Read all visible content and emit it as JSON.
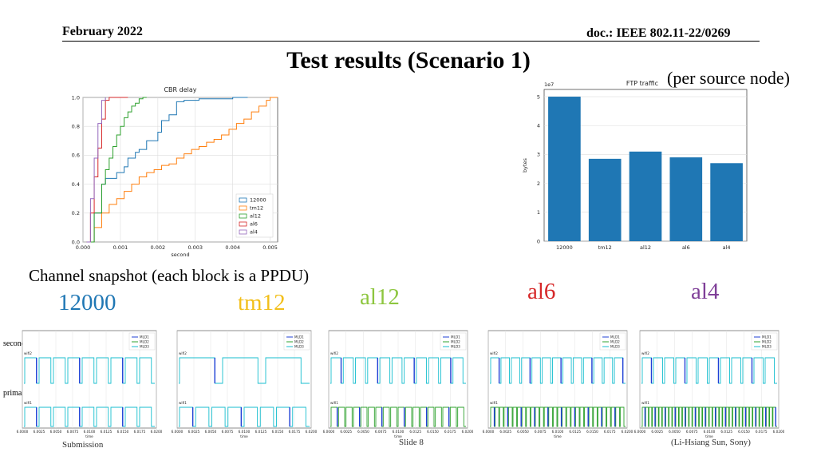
{
  "header": {
    "date": "February 2022",
    "doc": "doc.: IEEE 802.11-22/0269"
  },
  "title": "Test results (Scenario 1)",
  "subtitle": "(per source node)",
  "caption": "Channel snapshot (each block is a PPDU)",
  "variant_labels": [
    "12000",
    "tm12",
    "al12",
    "al6",
    "al4"
  ],
  "side_labels": {
    "secondary": "secondary",
    "primary": "primary"
  },
  "footer": {
    "left": "Submission",
    "slide": "Slide 8",
    "author": "(Li-Hsiang Sun, Sony)"
  },
  "colors": {
    "12000": "#1f77b4",
    "tm12": "#ff7f0e",
    "al12": "#2ca02c",
    "al6": "#d62728",
    "al4": "#9467bd",
    "bar": "#1f77b4",
    "mld1": "#1f3fd6",
    "mld2": "#2ca02c",
    "mld3": "#17becf"
  },
  "chart_data": [
    {
      "type": "line",
      "title": "CBR delay",
      "xlabel": "second",
      "ylabel": "",
      "xlim": [
        0,
        0.0052
      ],
      "ylim": [
        0,
        1.0
      ],
      "xticks": [
        "0.000",
        "0.001",
        "0.002",
        "0.003",
        "0.004",
        "0.005"
      ],
      "yticks": [
        "0.0",
        "0.2",
        "0.4",
        "0.6",
        "0.8",
        "1.0"
      ],
      "grid": true,
      "legend": "lower-right",
      "series": [
        {
          "name": "12000",
          "x": [
            0.0001,
            0.0003,
            0.0005,
            0.0006,
            0.0008,
            0.0009,
            0.0011,
            0.0012,
            0.0014,
            0.0015,
            0.0017,
            0.0018,
            0.002,
            0.0021,
            0.0023,
            0.0025,
            0.0027,
            0.0029,
            0.0031,
            0.004,
            0.0044
          ],
          "y": [
            0.0,
            0.2,
            0.4,
            0.44,
            0.44,
            0.48,
            0.52,
            0.58,
            0.62,
            0.64,
            0.7,
            0.7,
            0.76,
            0.84,
            0.88,
            0.97,
            0.98,
            0.98,
            0.99,
            1.0,
            1.0
          ]
        },
        {
          "name": "tm12",
          "x": [
            0.0001,
            0.0003,
            0.0005,
            0.0007,
            0.0009,
            0.0011,
            0.0013,
            0.0015,
            0.0017,
            0.0019,
            0.0021,
            0.0023,
            0.0025,
            0.0027,
            0.0029,
            0.0031,
            0.0033,
            0.0035,
            0.0037,
            0.0039,
            0.0041,
            0.0043,
            0.0045,
            0.0047,
            0.0049,
            0.005,
            0.0052
          ],
          "y": [
            0.0,
            0.1,
            0.2,
            0.26,
            0.3,
            0.35,
            0.4,
            0.45,
            0.48,
            0.5,
            0.53,
            0.54,
            0.58,
            0.61,
            0.64,
            0.66,
            0.69,
            0.71,
            0.74,
            0.78,
            0.82,
            0.85,
            0.9,
            0.94,
            0.98,
            1.0,
            1.0
          ]
        },
        {
          "name": "al12",
          "x": [
            0.0001,
            0.0003,
            0.0005,
            0.0006,
            0.0007,
            0.0008,
            0.0009,
            0.001,
            0.0011,
            0.0012,
            0.0013,
            0.0014,
            0.0015,
            0.0016,
            0.0017
          ],
          "y": [
            0.0,
            0.2,
            0.4,
            0.5,
            0.58,
            0.66,
            0.74,
            0.8,
            0.86,
            0.9,
            0.94,
            0.96,
            0.99,
            1.0,
            1.0
          ]
        },
        {
          "name": "al6",
          "x": [
            0.0001,
            0.0002,
            0.0003,
            0.0004,
            0.0005,
            0.0006,
            0.0007,
            0.0012
          ],
          "y": [
            0.0,
            0.2,
            0.45,
            0.65,
            0.85,
            0.98,
            1.0,
            1.0
          ]
        },
        {
          "name": "al4",
          "x": [
            0.0001,
            0.0002,
            0.0003,
            0.0004,
            0.0005,
            0.0006
          ],
          "y": [
            0.0,
            0.3,
            0.58,
            0.82,
            0.98,
            1.0
          ]
        }
      ]
    },
    {
      "type": "bar",
      "title": "FTP traffic",
      "ylabel": "bytes",
      "y_multiplier": "1e7",
      "categories": [
        "12000",
        "tm12",
        "al12",
        "al6",
        "al4"
      ],
      "values": [
        5.0,
        2.85,
        3.1,
        2.9,
        2.7
      ],
      "ylim": [
        0,
        5.25
      ],
      "yticks": [
        "0",
        "1",
        "2",
        "3",
        "4",
        "5"
      ],
      "grid": true
    },
    {
      "type": "line",
      "title": "Channel snapshot",
      "xlabel": "time",
      "legend": [
        "MLD1",
        "MLD2",
        "MLD3"
      ],
      "row_labels": [
        "wifi2",
        "wifi1"
      ],
      "xticks": [
        "6.0000",
        "6.0025",
        "6.0050",
        "6.0075",
        "6.0100",
        "6.0125",
        "6.0150",
        "6.0175",
        "6.0200"
      ],
      "panels": [
        {
          "label": "12000",
          "secondary_ppdus": 9,
          "primary_ppdus": 9
        },
        {
          "label": "tm12",
          "secondary_ppdus": 3,
          "primary_ppdus": 8
        },
        {
          "label": "al12",
          "secondary_ppdus": 11,
          "primary_ppdus": 18
        },
        {
          "label": "al6",
          "secondary_ppdus": 13,
          "primary_ppdus": 30
        },
        {
          "label": "al4",
          "secondary_ppdus": 12,
          "primary_ppdus": 40
        }
      ]
    }
  ]
}
